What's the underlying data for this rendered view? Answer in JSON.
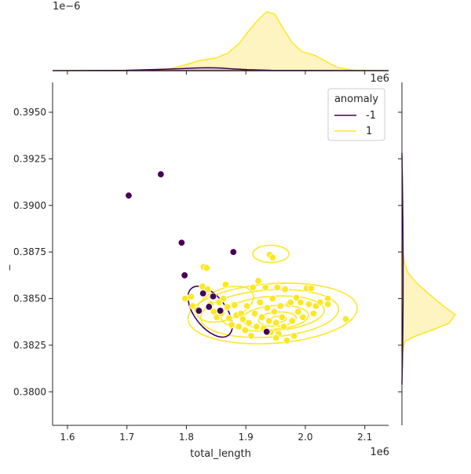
{
  "colors": {
    "anomaly_neg": "#440154",
    "anomaly_pos": "#fde725",
    "kde_fill_pos": "#fdf0a6",
    "kde_fill_neg": "#c8b8b8",
    "axis": "#262626"
  },
  "chart_data": {
    "type": "scatter",
    "subtype": "jointplot",
    "xlabel": "total_length",
    "ylabel": "_",
    "x_scale_label": "1e6",
    "y_scale_label": "1e6",
    "top_marginal_scale_label": "1e−6",
    "xlim": [
      1.575,
      2.14
    ],
    "ylim": [
      0.3782,
      0.3966
    ],
    "x_ticks": [
      1.6,
      1.7,
      1.8,
      1.9,
      2.0,
      2.1
    ],
    "x_tick_labels": [
      "1.6",
      "1.7",
      "1.8",
      "1.9",
      "2.0",
      "2.1"
    ],
    "y_ticks": [
      0.38,
      0.3825,
      0.385,
      0.3875,
      0.39,
      0.3925,
      0.395
    ],
    "y_tick_labels": [
      "0.3800",
      "0.3825",
      "0.3850",
      "0.3875",
      "0.3900",
      "0.3925",
      "0.3950"
    ],
    "legend": {
      "title": "anomaly",
      "position": "top-right",
      "entries": [
        {
          "label": "-1",
          "color": "#440154"
        },
        {
          "label": "1",
          "color": "#fde725"
        }
      ]
    },
    "series": [
      {
        "name": "-1",
        "color": "#440154",
        "points": [
          [
            1.703,
            0.39053
          ],
          [
            1.757,
            0.39167
          ],
          [
            1.792,
            0.388
          ],
          [
            1.879,
            0.3875
          ],
          [
            1.797,
            0.38625
          ],
          [
            1.828,
            0.38528
          ],
          [
            1.845,
            0.38512
          ],
          [
            1.838,
            0.38456
          ],
          [
            1.821,
            0.38435
          ],
          [
            1.857,
            0.38435
          ],
          [
            1.935,
            0.38322
          ]
        ]
      },
      {
        "name": "1",
        "color": "#fde725",
        "points": [
          [
            1.94,
            0.38735
          ],
          [
            1.945,
            0.3872
          ],
          [
            1.798,
            0.385
          ],
          [
            1.808,
            0.3851
          ],
          [
            1.811,
            0.3846
          ],
          [
            1.818,
            0.3844
          ],
          [
            1.827,
            0.38565
          ],
          [
            1.829,
            0.3867
          ],
          [
            1.834,
            0.38665
          ],
          [
            1.836,
            0.3855
          ],
          [
            1.841,
            0.3847
          ],
          [
            1.846,
            0.3843
          ],
          [
            1.851,
            0.384
          ],
          [
            1.855,
            0.3848
          ],
          [
            1.859,
            0.3842
          ],
          [
            1.862,
            0.385
          ],
          [
            1.866,
            0.38575
          ],
          [
            1.869,
            0.38455
          ],
          [
            1.872,
            0.38395
          ],
          [
            1.876,
            0.3836
          ],
          [
            1.881,
            0.38465
          ],
          [
            1.884,
            0.3841
          ],
          [
            1.888,
            0.3835
          ],
          [
            1.892,
            0.3842
          ],
          [
            1.895,
            0.3839
          ],
          [
            1.899,
            0.3833
          ],
          [
            1.902,
            0.3846
          ],
          [
            1.905,
            0.3837
          ],
          [
            1.909,
            0.383
          ],
          [
            1.912,
            0.3856
          ],
          [
            1.915,
            0.3842
          ],
          [
            1.918,
            0.3835
          ],
          [
            1.921,
            0.38595
          ],
          [
            1.924,
            0.3848
          ],
          [
            1.927,
            0.384
          ],
          [
            1.93,
            0.3834
          ],
          [
            1.933,
            0.3856
          ],
          [
            1.936,
            0.3845
          ],
          [
            1.939,
            0.3838
          ],
          [
            1.942,
            0.3832
          ],
          [
            1.945,
            0.385
          ],
          [
            1.948,
            0.3843
          ],
          [
            1.951,
            0.3837
          ],
          [
            1.953,
            0.3856
          ],
          [
            1.955,
            0.3831
          ],
          [
            1.958,
            0.3846
          ],
          [
            1.961,
            0.384
          ],
          [
            1.964,
            0.3835
          ],
          [
            1.966,
            0.3855
          ],
          [
            1.969,
            0.38275
          ],
          [
            1.972,
            0.3847
          ],
          [
            1.975,
            0.3848
          ],
          [
            1.978,
            0.3838
          ],
          [
            1.981,
            0.383
          ],
          [
            1.985,
            0.38505
          ],
          [
            1.988,
            0.3843
          ],
          [
            1.992,
            0.3848
          ],
          [
            1.996,
            0.384
          ],
          [
            2.002,
            0.38555
          ],
          [
            2.006,
            0.3847
          ],
          [
            2.01,
            0.38555
          ],
          [
            2.014,
            0.3842
          ],
          [
            2.018,
            0.3846
          ],
          [
            2.025,
            0.3848
          ],
          [
            2.038,
            0.385
          ],
          [
            2.038,
            0.3847
          ],
          [
            2.068,
            0.3839
          ],
          [
            1.951,
            0.3829
          ]
        ]
      }
    ]
  }
}
